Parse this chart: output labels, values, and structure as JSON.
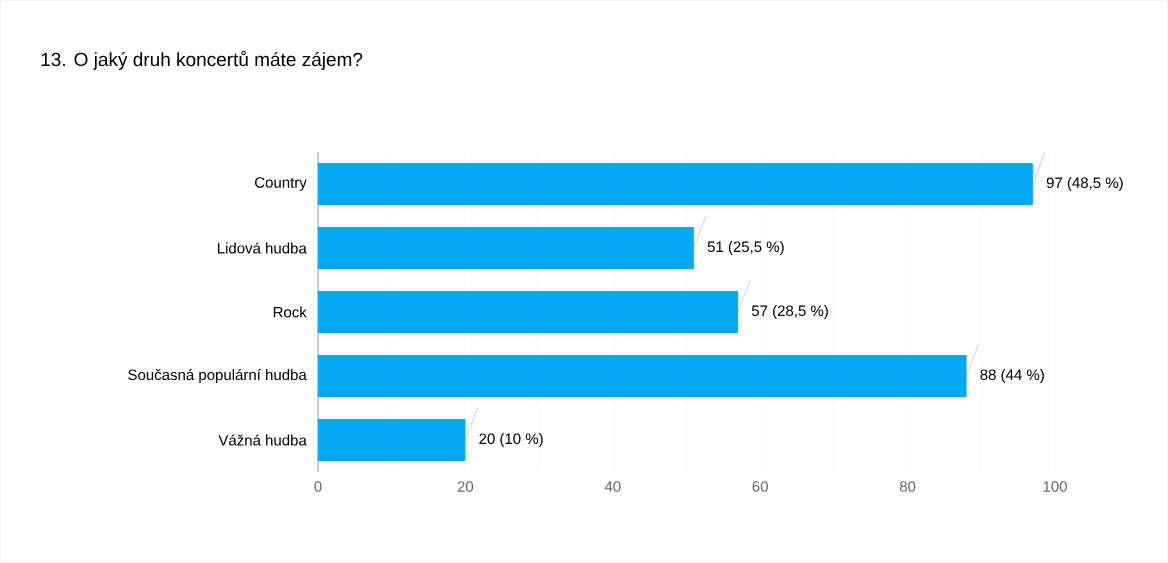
{
  "chart_data": {
    "type": "bar",
    "orientation": "horizontal",
    "title": "13. O jaký druh koncertů máte zájem?",
    "categories": [
      "Country",
      "Lidová hudba",
      "Rock",
      "Současná populární hudba",
      "Vážná hudba"
    ],
    "values": [
      97,
      51,
      57,
      88,
      20
    ],
    "value_labels": [
      "97 (48,5 %)",
      "51 (25,5 %)",
      "57 (28,5 %)",
      "88 (44 %)",
      "20 (10 %)"
    ],
    "color": "#03a9f4",
    "xlim": [
      0,
      100
    ],
    "xticks": [
      0,
      20,
      40,
      60,
      80,
      100
    ],
    "grid": "x"
  }
}
